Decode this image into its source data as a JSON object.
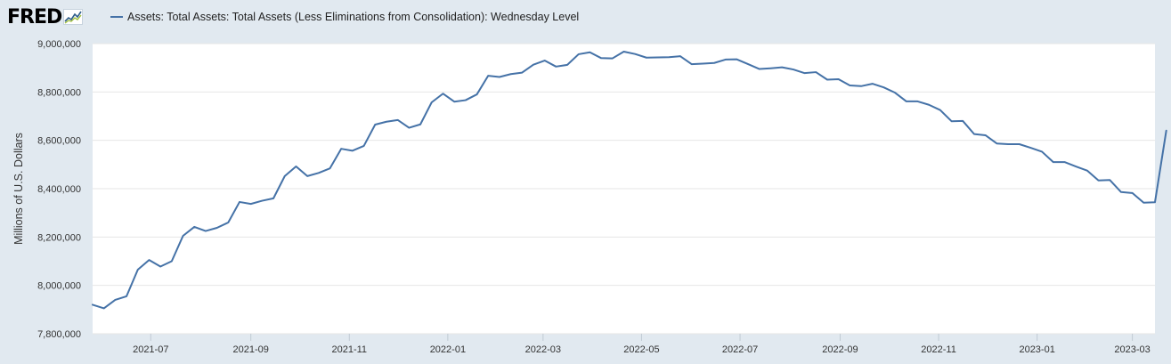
{
  "header": {
    "logo_text": "FRED",
    "logo_icon": "line-graph-icon",
    "legend_label": "Assets: Total Assets: Total Assets (Less Eliminations from Consolidation): Wednesday Level"
  },
  "chart_data": {
    "type": "line",
    "title": "",
    "ylabel": "Millions of U.S. Dollars",
    "xlabel": "",
    "ylim": [
      7800000,
      9000000
    ],
    "yticks": [
      7800000,
      8000000,
      8200000,
      8400000,
      8600000,
      8800000,
      9000000
    ],
    "ytick_labels": [
      "7,800,000",
      "8,000,000",
      "8,200,000",
      "8,400,000",
      "8,600,000",
      "8,800,000",
      "9,000,000"
    ],
    "xlim": [
      "2021-05-26",
      "2023-03-15"
    ],
    "xticks": [
      "2021-07-01",
      "2021-09-01",
      "2021-11-01",
      "2022-01-01",
      "2022-03-01",
      "2022-05-01",
      "2022-07-01",
      "2022-09-01",
      "2022-11-01",
      "2023-01-01",
      "2023-03-01"
    ],
    "xtick_labels": [
      "2021-07",
      "2021-09",
      "2021-11",
      "2022-01",
      "2022-03",
      "2022-05",
      "2022-07",
      "2022-09",
      "2022-11",
      "2023-01",
      "2023-03"
    ],
    "grid": true,
    "colors": {
      "line": "#4572a7",
      "plot_bg": "#ffffff",
      "page_bg": "#e1e9f0",
      "grid": "#e6e6e6"
    },
    "series": [
      {
        "start": "2021-05-26",
        "interval_days": 7,
        "values": [
          7920000,
          7905000,
          7940000,
          7955000,
          8065000,
          8105000,
          8078000,
          8100000,
          8205000,
          8242000,
          8225000,
          8238000,
          8260000,
          8345000,
          8337000,
          8350000,
          8360000,
          8452000,
          8492000,
          8452000,
          8465000,
          8484000,
          8565000,
          8557000,
          8577000,
          8665000,
          8677000,
          8684000,
          8652000,
          8666000,
          8757000,
          8793000,
          8760000,
          8766000,
          8790000,
          8867000,
          8862000,
          8874000,
          8880000,
          8913000,
          8930000,
          8905000,
          8912000,
          8956000,
          8964000,
          8940000,
          8939000,
          8967000,
          8957000,
          8942000,
          8943000,
          8944000,
          8948000,
          8915000,
          8917000,
          8920000,
          8934000,
          8935000,
          8915000,
          8895000,
          8898000,
          8902000,
          8893000,
          8878000,
          8882000,
          8851000,
          8853000,
          8827000,
          8824000,
          8834000,
          8819000,
          8797000,
          8761000,
          8761000,
          8747000,
          8725000,
          8679000,
          8680000,
          8626000,
          8621000,
          8587000,
          8584000,
          8584000,
          8569000,
          8553000,
          8510000,
          8510000,
          8492000,
          8475000,
          8434000,
          8436000,
          8386000,
          8382000,
          8342000,
          8344000,
          8640000
        ]
      }
    ]
  }
}
